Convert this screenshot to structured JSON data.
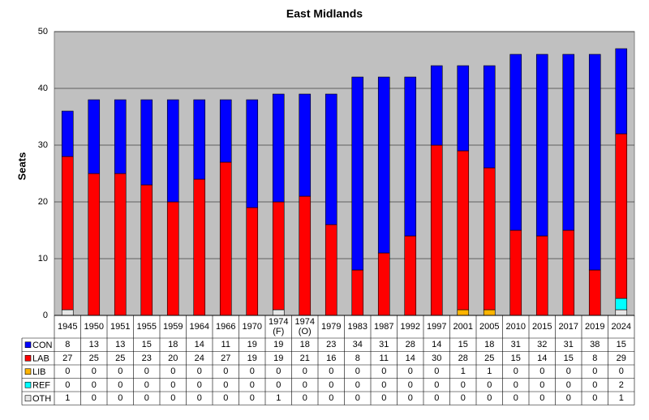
{
  "chart_data": {
    "type": "stacked-bar",
    "title": "East Midlands",
    "y_label": "Seats",
    "categories": [
      "1945",
      "1950",
      "1951",
      "1955",
      "1959",
      "1964",
      "1966",
      "1970",
      "1974 (F)",
      "1974 (O)",
      "1979",
      "1983",
      "1987",
      "1992",
      "1997",
      "2001",
      "2005",
      "2010",
      "2015",
      "2017",
      "2019",
      "2024"
    ],
    "series": [
      {
        "name": "OTH",
        "color": "#e6e6e6",
        "values": [
          1,
          0,
          0,
          0,
          0,
          0,
          0,
          0,
          1,
          0,
          0,
          0,
          0,
          0,
          0,
          0,
          0,
          0,
          0,
          0,
          0,
          1
        ]
      },
      {
        "name": "REF",
        "color": "#00ffff",
        "values": [
          0,
          0,
          0,
          0,
          0,
          0,
          0,
          0,
          0,
          0,
          0,
          0,
          0,
          0,
          0,
          0,
          0,
          0,
          0,
          0,
          0,
          2
        ]
      },
      {
        "name": "LIB",
        "color": "#ffb400",
        "values": [
          0,
          0,
          0,
          0,
          0,
          0,
          0,
          0,
          0,
          0,
          0,
          0,
          0,
          0,
          0,
          1,
          1,
          0,
          0,
          0,
          0,
          0
        ]
      },
      {
        "name": "LAB",
        "color": "#ff0000",
        "values": [
          27,
          25,
          25,
          23,
          20,
          24,
          27,
          19,
          19,
          21,
          16,
          8,
          11,
          14,
          30,
          28,
          25,
          15,
          14,
          15,
          8,
          29
        ]
      },
      {
        "name": "CON",
        "color": "#0000ff",
        "values": [
          8,
          13,
          13,
          15,
          18,
          14,
          11,
          19,
          19,
          18,
          23,
          34,
          31,
          28,
          14,
          15,
          18,
          31,
          32,
          31,
          38,
          15
        ]
      }
    ],
    "ylim": [
      0,
      50
    ],
    "yticks": [
      0,
      10,
      20,
      30,
      40,
      50
    ],
    "grid": true,
    "plot_background": "#c0c0c0"
  }
}
